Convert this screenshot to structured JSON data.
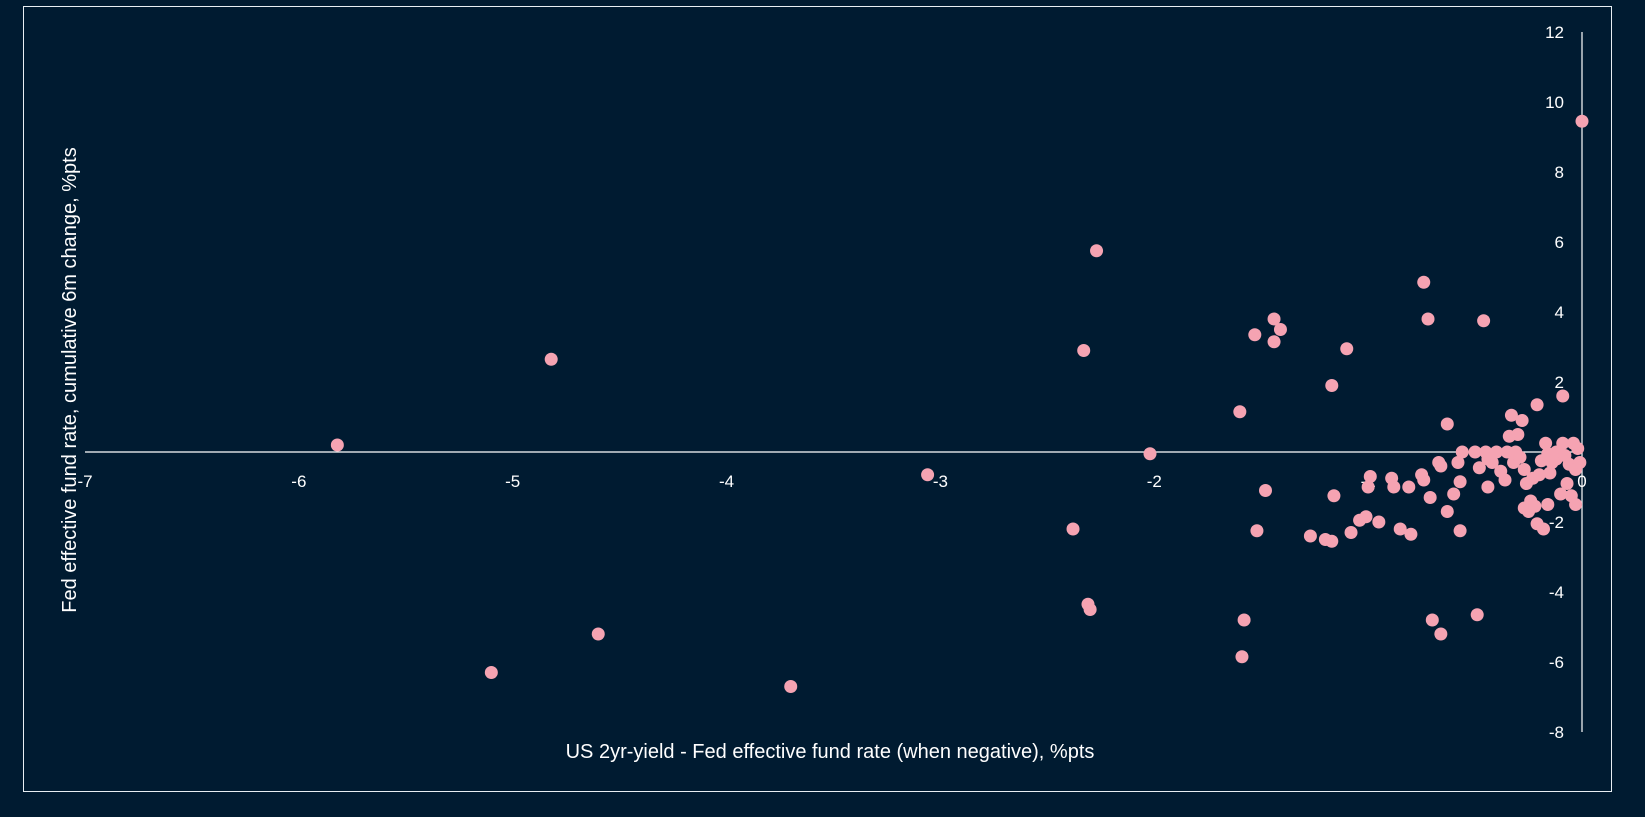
{
  "chart_data": {
    "type": "scatter",
    "title": "",
    "xlabel": "US 2yr-yield - Fed effective fund rate (when negative), %pts",
    "ylabel": "Fed effective fund rate, cumulative 6m change, %pts",
    "xlim": [
      -7,
      0
    ],
    "ylim": [
      -8,
      12
    ],
    "x_ticks": [
      -7,
      -6,
      -5,
      -4,
      -3,
      -2,
      -1,
      0
    ],
    "y_ticks": [
      -8,
      -6,
      -4,
      -2,
      0,
      2,
      4,
      6,
      8,
      10,
      12
    ],
    "x_tick_labels": [
      "-7",
      "-6",
      "-5",
      "-4",
      "-3",
      "-2",
      "-1",
      "0"
    ],
    "y_tick_labels": [
      "-8",
      "-6",
      "-4",
      "-2",
      "0",
      "2",
      "4",
      "6",
      "8",
      "10",
      "12"
    ],
    "grid": false,
    "legend": false,
    "colors": {
      "background": "#001b31",
      "marker": "#f5a3b2",
      "axis": "#ffffff",
      "text": "#ffffff"
    },
    "series": [
      {
        "points": [
          [
            -5.82,
            0.2
          ],
          [
            -4.82,
            2.65
          ],
          [
            -5.1,
            -6.3
          ],
          [
            -4.6,
            -5.2
          ],
          [
            -3.7,
            -6.7
          ],
          [
            -3.06,
            -0.65
          ],
          [
            -2.27,
            5.75
          ],
          [
            -2.33,
            2.9
          ],
          [
            -2.38,
            -2.2
          ],
          [
            -2.31,
            -4.35
          ],
          [
            -2.3,
            -4.5
          ],
          [
            -2.02,
            -0.05
          ],
          [
            -1.6,
            1.15
          ],
          [
            -1.53,
            3.35
          ],
          [
            -1.44,
            3.8
          ],
          [
            -1.44,
            3.15
          ],
          [
            -1.41,
            3.5
          ],
          [
            -1.48,
            -1.1
          ],
          [
            -1.52,
            -2.25
          ],
          [
            -1.58,
            -4.8
          ],
          [
            -1.59,
            -5.85
          ],
          [
            -1.27,
            -2.4
          ],
          [
            -1.2,
            -2.5
          ],
          [
            -1.17,
            -2.55
          ],
          [
            -1.16,
            -1.25
          ],
          [
            -1.17,
            1.9
          ],
          [
            -1.1,
            2.95
          ],
          [
            -1.08,
            -2.3
          ],
          [
            -1.04,
            -1.95
          ],
          [
            -1.01,
            -1.85
          ],
          [
            -0.99,
            -0.7
          ],
          [
            -1.0,
            -1.0
          ],
          [
            -0.95,
            -2.0
          ],
          [
            -0.89,
            -0.75
          ],
          [
            -0.88,
            -1.0
          ],
          [
            -0.85,
            -2.2
          ],
          [
            -0.8,
            -2.35
          ],
          [
            -0.81,
            -1.0
          ],
          [
            -0.75,
            -0.65
          ],
          [
            -0.74,
            -0.8
          ],
          [
            -0.74,
            4.85
          ],
          [
            -0.72,
            3.8
          ],
          [
            -0.71,
            -1.3
          ],
          [
            -0.7,
            -4.8
          ],
          [
            -0.67,
            -0.3
          ],
          [
            -0.66,
            -0.4
          ],
          [
            -0.66,
            -5.2
          ],
          [
            -0.63,
            0.8
          ],
          [
            -0.63,
            -1.7
          ],
          [
            -0.6,
            -1.2
          ],
          [
            -0.58,
            -0.3
          ],
          [
            -0.56,
            0.0
          ],
          [
            -0.57,
            -0.85
          ],
          [
            -0.57,
            -2.25
          ],
          [
            -0.5,
            0.0
          ],
          [
            -0.49,
            -4.65
          ],
          [
            -0.48,
            -0.45
          ],
          [
            -0.46,
            3.75
          ],
          [
            -0.45,
            0.0
          ],
          [
            -0.44,
            -0.2
          ],
          [
            -0.44,
            -1.0
          ],
          [
            -0.42,
            -0.3
          ],
          [
            -0.4,
            0.0
          ],
          [
            -0.38,
            -0.55
          ],
          [
            -0.36,
            -0.8
          ],
          [
            -0.35,
            0.0
          ],
          [
            -0.34,
            0.45
          ],
          [
            -0.33,
            1.05
          ],
          [
            -0.32,
            -0.3
          ],
          [
            -0.31,
            0.0
          ],
          [
            -0.3,
            0.5
          ],
          [
            -0.29,
            -0.15
          ],
          [
            -0.28,
            0.9
          ],
          [
            -0.27,
            -0.5
          ],
          [
            -0.27,
            -1.6
          ],
          [
            -0.26,
            -0.9
          ],
          [
            -0.25,
            -1.7
          ],
          [
            -0.24,
            -1.4
          ],
          [
            -0.23,
            -0.75
          ],
          [
            -0.22,
            -1.55
          ],
          [
            -0.21,
            -2.05
          ],
          [
            -0.21,
            1.35
          ],
          [
            -0.2,
            -0.65
          ],
          [
            -0.19,
            -0.25
          ],
          [
            -0.18,
            -2.2
          ],
          [
            -0.17,
            0.25
          ],
          [
            -0.16,
            -1.5
          ],
          [
            -0.16,
            -0.05
          ],
          [
            -0.15,
            -0.6
          ],
          [
            -0.14,
            -0.3
          ],
          [
            -0.12,
            -0.2
          ],
          [
            -0.12,
            0.0
          ],
          [
            -0.1,
            -1.2
          ],
          [
            -0.09,
            0.25
          ],
          [
            -0.09,
            1.6
          ],
          [
            -0.08,
            -0.1
          ],
          [
            -0.07,
            -0.9
          ],
          [
            -0.06,
            -0.35
          ],
          [
            -0.05,
            -1.25
          ],
          [
            -0.04,
            0.25
          ],
          [
            -0.03,
            -0.5
          ],
          [
            -0.03,
            -1.5
          ],
          [
            -0.02,
            0.1
          ],
          [
            -0.01,
            -0.3
          ],
          [
            0.0,
            9.45
          ]
        ]
      }
    ]
  }
}
